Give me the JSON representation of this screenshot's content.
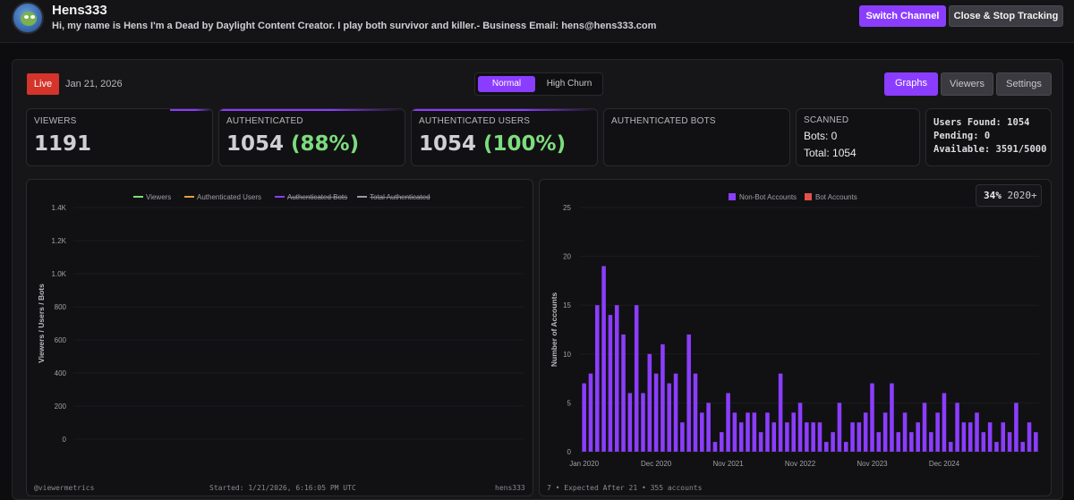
{
  "header": {
    "channel_name": "Hens333",
    "bio": "Hi, my name is Hens I'm a Dead by Daylight Content Creator. I play both survivor and killer.- Business Email: hens@hens333.com",
    "switch_label": "Switch Channel",
    "close_label": "Close & Stop Tracking"
  },
  "status": {
    "live_label": "Live",
    "date": "Jan 21, 2026"
  },
  "modes": {
    "normal": "Normal",
    "high_churn": "High Churn"
  },
  "tabs": {
    "graphs": "Graphs",
    "viewers": "Viewers",
    "settings": "Settings"
  },
  "stats": {
    "viewers_label": "VIEWERS",
    "viewers_value": "1191",
    "auth_label": "AUTHENTICATED",
    "auth_value": "1054",
    "auth_pct": "(88%)",
    "auth_users_label": "AUTHENTICATED USERS",
    "auth_users_value": "1054",
    "auth_users_pct": "(100%)",
    "auth_bots_label": "AUTHENTICATED BOTS",
    "scanned_label": "SCANNED",
    "bots_line": "Bots: 0",
    "total_line": "Total: 1054",
    "users_found": "Users Found: 1054",
    "pending": "Pending: 0",
    "available": "Available: 3591/5000"
  },
  "left_footer": {
    "brand": "@viewermetrics",
    "started": "Started: 1/21/2026, 6:16:05 PM UTC",
    "channel": "hens333"
  },
  "right_footer": {
    "note": "7 • Expected After 21 • 355 accounts"
  },
  "pct_badge": {
    "pct": "34%",
    "suffix": "2020+"
  },
  "colors": {
    "accent": "#8b3dff",
    "live": "#d4342a",
    "green": "#7ddc7d",
    "bars": "#8b3dff",
    "bot": "#e0524a"
  },
  "chart_data": [
    {
      "type": "line",
      "title": "",
      "ylabel": "Viewers / Users / Bots",
      "xlabel": "",
      "ylim": [
        0,
        1400
      ],
      "yticks": [
        "0",
        "200",
        "400",
        "600",
        "800",
        "1.0K",
        "1.2K",
        "1.4K"
      ],
      "series": [
        {
          "name": "Viewers",
          "color": "#7ddc7d",
          "hidden": false,
          "values": []
        },
        {
          "name": "Authenticated Users",
          "color": "#e0a040",
          "hidden": false,
          "values": []
        },
        {
          "name": "Authenticated Bots",
          "color": "#8b3dff",
          "hidden": true,
          "values": []
        },
        {
          "name": "Total Authenticated",
          "color": "#9a9aa0",
          "hidden": true,
          "values": []
        }
      ]
    },
    {
      "type": "bar",
      "title": "",
      "ylabel": "Number of Accounts",
      "xlabel": "",
      "ylim": [
        0,
        25
      ],
      "yticks": [
        "0",
        "5",
        "10",
        "15",
        "20",
        "25"
      ],
      "xticks": [
        "Jan 2020",
        "Dec 2020",
        "Nov 2021",
        "Nov 2022",
        "Nov 2023",
        "Dec 2024"
      ],
      "xtick_index": [
        0,
        11,
        22,
        33,
        44,
        55
      ],
      "legend": [
        {
          "name": "Non-Bot Accounts",
          "color": "#8b3dff"
        },
        {
          "name": "Bot Accounts",
          "color": "#e0524a"
        }
      ],
      "series": [
        {
          "name": "Non-Bot Accounts",
          "values": [
            7,
            8,
            15,
            19,
            14,
            15,
            12,
            6,
            15,
            6,
            10,
            8,
            11,
            7,
            8,
            3,
            12,
            8,
            4,
            5,
            1,
            2,
            6,
            4,
            3,
            4,
            4,
            2,
            4,
            3,
            8,
            3,
            4,
            5,
            3,
            3,
            3,
            1,
            2,
            5,
            1,
            3,
            3,
            4,
            7,
            2,
            4,
            7,
            2,
            4,
            2,
            3,
            5,
            2,
            4,
            6,
            1,
            5,
            3,
            3,
            4,
            2,
            3,
            1,
            3,
            2,
            5,
            1,
            3,
            2
          ]
        },
        {
          "name": "Bot Accounts",
          "values": []
        }
      ]
    }
  ]
}
